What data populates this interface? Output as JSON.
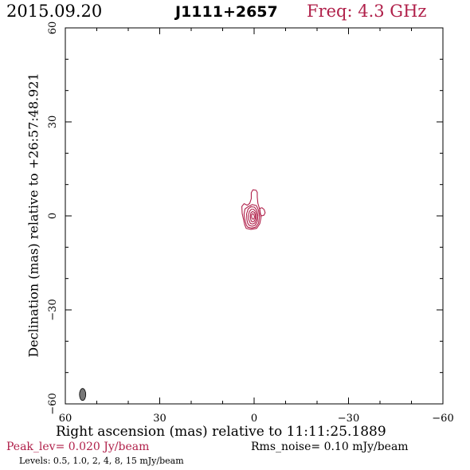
{
  "header": {
    "date": "2015.09.20",
    "source": "J1111+2657",
    "frequency": "Freq: 4.3 GHz"
  },
  "footer": {
    "peak": "Peak_lev=  0.020 Jy/beam",
    "rms": "Rms_noise= 0.10 mJy/beam",
    "levels": "Levels: 0.5, 1.0,   2,   4,   8,  15 mJy/beam"
  },
  "colors": {
    "contour": "#b0204a",
    "beam": "#777777",
    "axes": "#000000"
  },
  "chart_data": {
    "type": "contour",
    "xlabel": "Right ascension (mas) relative to 11:11:25.1889",
    "ylabel": "Declination (mas) relative to +26:57:48.921",
    "xlim": [
      60,
      -60
    ],
    "ylim": [
      -60,
      60
    ],
    "x_ticks": [
      60,
      30,
      0,
      -30,
      -60
    ],
    "x_tick_labels": [
      "60",
      "30",
      "0",
      "−30",
      "−60"
    ],
    "y_ticks": [
      -60,
      -30,
      0,
      30,
      60
    ],
    "y_tick_labels": [
      "−60",
      "−30",
      "0",
      "30",
      "60"
    ],
    "contour_levels_mJy": [
      0.5,
      1.0,
      2,
      4,
      8,
      15
    ],
    "peak_Jy_per_beam": 0.02,
    "rms_mJy_per_beam": 0.1,
    "contours": [
      {
        "level": 0.5,
        "points": [
          [
            2.5,
            -4
          ],
          [
            1,
            -4.3
          ],
          [
            -0.8,
            -4
          ],
          [
            -1.8,
            -2.5
          ],
          [
            -2.2,
            -0.5
          ],
          [
            -1.8,
            2
          ],
          [
            -1.2,
            4
          ],
          [
            -1,
            6
          ],
          [
            -1,
            7.5
          ],
          [
            -0.6,
            8.2
          ],
          [
            0.4,
            8.3
          ],
          [
            0.9,
            7.4
          ],
          [
            0.9,
            5.5
          ],
          [
            1.4,
            4
          ],
          [
            2.2,
            3.4
          ],
          [
            3.2,
            3.9
          ],
          [
            3.9,
            3
          ],
          [
            3.8,
            0.8
          ],
          [
            3.4,
            -1
          ],
          [
            3,
            -2.8
          ]
        ]
      },
      {
        "level": 1.0,
        "points": [
          [
            2,
            -3.6
          ],
          [
            0.8,
            -3.9
          ],
          [
            -0.5,
            -3.6
          ],
          [
            -1.4,
            -2.3
          ],
          [
            -1.7,
            -0.3
          ],
          [
            -1.4,
            1.8
          ],
          [
            -0.7,
            3.3
          ],
          [
            0.6,
            3.6
          ],
          [
            1.8,
            3
          ],
          [
            2.9,
            2.2
          ],
          [
            3.2,
            0.5
          ],
          [
            2.9,
            -1.4
          ],
          [
            2.5,
            -2.9
          ]
        ]
      },
      {
        "level": 2,
        "points": [
          [
            1.6,
            -3
          ],
          [
            0.6,
            -3.3
          ],
          [
            -0.3,
            -3
          ],
          [
            -1,
            -1.8
          ],
          [
            -1.2,
            0
          ],
          [
            -0.9,
            1.7
          ],
          [
            -0.1,
            2.8
          ],
          [
            1,
            2.9
          ],
          [
            1.9,
            2.2
          ],
          [
            2.4,
            0.6
          ],
          [
            2.3,
            -1.2
          ],
          [
            2,
            -2.4
          ]
        ]
      },
      {
        "level": 4,
        "points": [
          [
            1.2,
            -2.4
          ],
          [
            0.5,
            -2.6
          ],
          [
            -0.2,
            -2.3
          ],
          [
            -0.7,
            -1.3
          ],
          [
            -0.8,
            0.1
          ],
          [
            -0.5,
            1.4
          ],
          [
            0.2,
            2.1
          ],
          [
            0.9,
            2.1
          ],
          [
            1.5,
            1.4
          ],
          [
            1.8,
            0.2
          ],
          [
            1.7,
            -1.2
          ]
        ]
      },
      {
        "level": 8,
        "points": [
          [
            0.9,
            -1.7
          ],
          [
            0.4,
            -1.9
          ],
          [
            -0.1,
            -1.6
          ],
          [
            -0.4,
            -0.8
          ],
          [
            -0.4,
            0.3
          ],
          [
            -0.1,
            1.1
          ],
          [
            0.5,
            1.4
          ],
          [
            1,
            1
          ],
          [
            1.2,
            0
          ],
          [
            1.1,
            -1
          ]
        ]
      },
      {
        "level": 15,
        "points": [
          [
            0.6,
            -0.9
          ],
          [
            0.3,
            -1.1
          ],
          [
            0,
            -0.8
          ],
          [
            -0.1,
            -0.2
          ],
          [
            0.1,
            0.5
          ],
          [
            0.5,
            0.7
          ],
          [
            0.8,
            0.3
          ],
          [
            0.8,
            -0.4
          ]
        ]
      },
      {
        "level": 0.5,
        "points": [
          [
            -1.8,
            2.4
          ],
          [
            -2.5,
            2.6
          ],
          [
            -3.2,
            2
          ],
          [
            -3.5,
            1
          ],
          [
            -3.1,
            0.2
          ],
          [
            -2.4,
            0
          ],
          [
            -1.9,
            0.6
          ]
        ]
      }
    ],
    "beam": {
      "x": 54.5,
      "y": -57,
      "major_mas": 3.8,
      "minor_mas": 2.0,
      "pa_deg": 0
    }
  }
}
